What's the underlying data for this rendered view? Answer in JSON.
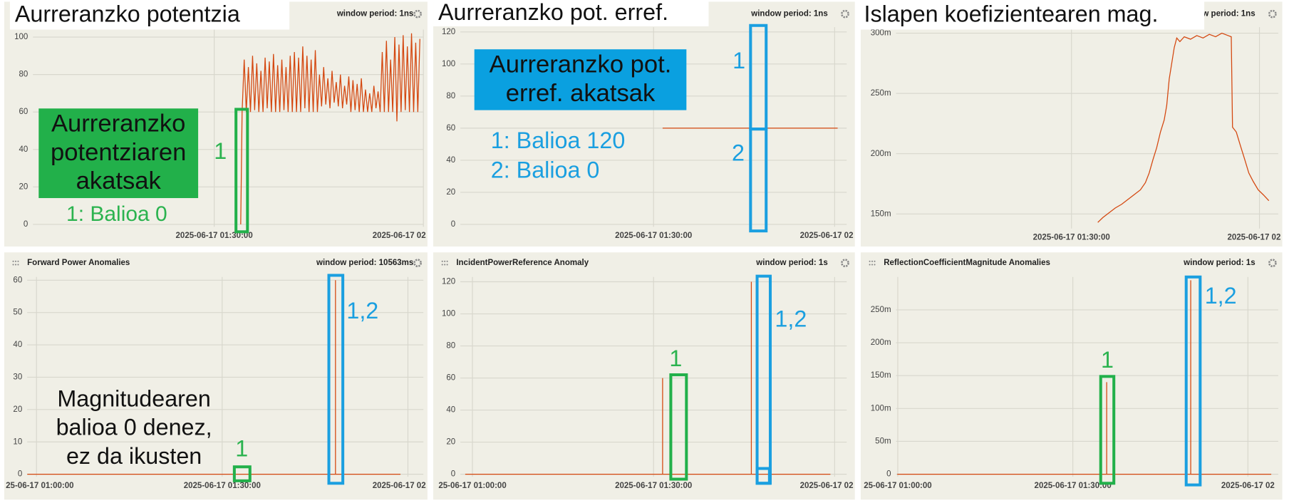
{
  "chart_data": [
    {
      "type": "line",
      "label": "Aurreranzko potentzia",
      "window_period": "window period: 1ns",
      "x": [
        93.8,
        94.0,
        94.3,
        94.6,
        94.9,
        95.2,
        95.5,
        95.8,
        96.1,
        96.4,
        96.7,
        97.0,
        97.3,
        97.6,
        97.9,
        98.2,
        98.5,
        98.8,
        99.1,
        99.4,
        99.7,
        100.0,
        100.3,
        100.6,
        100.9,
        101.2,
        101.5,
        101.8,
        102.1,
        102.4,
        102.7,
        103.0,
        103.3,
        103.6,
        103.9,
        104.2,
        104.5,
        104.8,
        105.1,
        105.4,
        105.7,
        106.0,
        106.3,
        106.6,
        106.9,
        107.2,
        107.5,
        107.8,
        108.1,
        108.4,
        108.7,
        109.0,
        109.3,
        109.6,
        109.9,
        110.2,
        110.5,
        110.8,
        111.1,
        111.4,
        111.7,
        112.0,
        112.3,
        112.6,
        112.9,
        113.2,
        113.5,
        113.8,
        114.1,
        114.4,
        114.7,
        115.0,
        115.3,
        115.6,
        115.9,
        116.2,
        116.5,
        116.8,
        117.1,
        117.4,
        117.7,
        118.0,
        118.3,
        118.6,
        118.9,
        119.2,
        119.5
      ],
      "series": [
        {
          "color": "#d4470f",
          "values": [
            0,
            60,
            88,
            60,
            84,
            60,
            90,
            61,
            86,
            60,
            82,
            60,
            89,
            62,
            87,
            60,
            91,
            60,
            85,
            60,
            88,
            61,
            84,
            60,
            90,
            60,
            92,
            60,
            89,
            60,
            95,
            62,
            90,
            60,
            88,
            60,
            93,
            60,
            80,
            63,
            84,
            64,
            78,
            62,
            82,
            65,
            76,
            63,
            80,
            62,
            74,
            64,
            79,
            60,
            77,
            61,
            75,
            60,
            78,
            60,
            72,
            60,
            70,
            60,
            74,
            62,
            71,
            60,
            92,
            60,
            98,
            60,
            88,
            60,
            100,
            55,
            96,
            60,
            101,
            61,
            95,
            60,
            102,
            60,
            97,
            60,
            99
          ]
        }
      ],
      "xlim": [
        64,
        120
      ],
      "xticks": [
        {
          "value": 90,
          "label": "2025-06-17 01:30:00"
        },
        {
          "value": 120,
          "label": "2025-06-17 02"
        }
      ],
      "ylim": [
        0,
        104
      ],
      "yticks": [
        0,
        20,
        40,
        60,
        80,
        100
      ],
      "grid": true,
      "callout": [
        "Aurreranzko",
        "potentziaren",
        "akatsak"
      ],
      "notes": [
        "1: Balioa 0"
      ],
      "markers": [
        "1"
      ]
    },
    {
      "type": "line",
      "label": "Aurreranzko pot. erref.",
      "window_period": "window period: 1ns",
      "x": [
        91.5,
        106.2,
        106.2,
        106.2,
        106.2,
        120.5
      ],
      "series": [
        {
          "color": "#d4470f",
          "values": [
            60,
            60,
            120,
            0,
            60,
            60
          ]
        }
      ],
      "xlim": [
        58,
        122
      ],
      "xticks": [
        {
          "value": 90,
          "label": "2025-06-17 01:30:00"
        },
        {
          "value": 120,
          "label": "2025-06-17 02"
        }
      ],
      "ylim": [
        0,
        123
      ],
      "yticks": [
        0,
        20,
        40,
        60,
        80,
        100,
        120
      ],
      "grid": true,
      "callout": [
        "Aurreranzko pot.",
        "erref. akatsak"
      ],
      "notes": [
        "1: Balioa 120",
        "2: Balioa 0"
      ],
      "markers": [
        "1",
        "2"
      ]
    },
    {
      "type": "line",
      "label": "Islapen koefizientearen mag.",
      "window_period": "window period: 1ns",
      "x": [
        94.2,
        95,
        96,
        97,
        98,
        99,
        100,
        101,
        101.8,
        102.4,
        103,
        103.6,
        104.2,
        104.8,
        105.2,
        105.6,
        106.0,
        106.4,
        106.8,
        107.3,
        108,
        109,
        110,
        111,
        112,
        113,
        114,
        115,
        115.5,
        115.7,
        116.3,
        117,
        117.6,
        118.3,
        119,
        119.8,
        120.6,
        121.5
      ],
      "series": [
        {
          "color": "#d4470f",
          "values": [
            0.143,
            0.147,
            0.151,
            0.155,
            0.158,
            0.162,
            0.166,
            0.17,
            0.176,
            0.184,
            0.195,
            0.205,
            0.218,
            0.228,
            0.24,
            0.262,
            0.275,
            0.288,
            0.296,
            0.293,
            0.297,
            0.295,
            0.298,
            0.296,
            0.299,
            0.297,
            0.3,
            0.298,
            0.297,
            0.222,
            0.218,
            0.206,
            0.196,
            0.184,
            0.177,
            0.17,
            0.166,
            0.161
          ]
        }
      ],
      "xlim": [
        62,
        123
      ],
      "xticks": [
        {
          "value": 90,
          "label": "2025-06-17 01:30:00"
        },
        {
          "value": 120,
          "label": "2025-06-17 02"
        }
      ],
      "ylim": [
        0.14,
        0.305
      ],
      "yticks": [
        {
          "value": 0.15,
          "label": "150m"
        },
        {
          "value": 0.2,
          "label": "200m"
        },
        {
          "value": 0.25,
          "label": "250m"
        },
        {
          "value": 0.3,
          "label": "300m"
        }
      ],
      "grid": true
    },
    {
      "type": "line",
      "title": "Forward Power Anomalies",
      "window_period": "window period: 10563ms",
      "x": [
        58.5,
        93.2,
        108.3,
        108.3,
        108.3,
        118.8
      ],
      "series": [
        {
          "color": "#d4470f",
          "values": [
            0,
            0,
            0,
            60,
            0,
            0
          ]
        }
      ],
      "xlim": [
        58.5,
        122.5
      ],
      "xticks": [
        {
          "value": 60,
          "label": "25-06-17 01:00:00"
        },
        {
          "value": 90,
          "label": "2025-06-17 01:30:00"
        },
        {
          "value": 120,
          "label": "2025-06-17 02"
        }
      ],
      "ylim": [
        0,
        61
      ],
      "yticks": [
        0,
        10,
        20,
        30,
        40,
        50,
        60
      ],
      "grid": true,
      "notes": [
        "Magnitudearen",
        "balioa 0 denez,",
        "ez da ikusten"
      ],
      "markers": [
        "1",
        "1,2"
      ]
    },
    {
      "type": "line",
      "title": "IncidentPowerReference Anomaly",
      "window_period": "window period: 1s",
      "x": [
        58.8,
        91.5,
        91.5,
        91.5,
        106.2,
        106.2,
        106.2,
        119.3
      ],
      "series": [
        {
          "color": "#d4470f",
          "values": [
            0,
            0,
            60,
            0,
            0,
            120,
            0,
            0
          ]
        }
      ],
      "xlim": [
        58,
        122
      ],
      "xticks": [
        {
          "value": 60,
          "label": "25-06-17 01:00:00"
        },
        {
          "value": 90,
          "label": "2025-06-17 01:30:00"
        },
        {
          "value": 120,
          "label": "2025-06-17 02"
        }
      ],
      "ylim": [
        0,
        123
      ],
      "yticks": [
        0,
        20,
        40,
        60,
        80,
        100,
        120
      ],
      "grid": true,
      "markers": [
        "1",
        "1,2"
      ]
    },
    {
      "type": "line",
      "title": "ReflectionCoefficientMagnitude Anomalies",
      "window_period": "window period: 1s",
      "x": [
        59.9,
        95.8,
        95.8,
        95.8,
        110.2,
        110.2,
        110.2,
        124.0
      ],
      "series": [
        {
          "color": "#d4470f",
          "values": [
            0,
            0,
            0.14,
            0,
            0,
            0.295,
            0,
            0
          ]
        }
      ],
      "xlim": [
        59.7,
        125.2
      ],
      "xticks": [
        {
          "value": 60,
          "label": "25-06-17 01:00:00"
        },
        {
          "value": 90,
          "label": "2025-06-17 01:30:00"
        },
        {
          "value": 120,
          "label": "2025-06-17 02"
        }
      ],
      "ylim": [
        0,
        0.3
      ],
      "yticks": [
        0,
        {
          "value": 0.05,
          "label": "50m"
        },
        {
          "value": 0.1,
          "label": "100m"
        },
        {
          "value": 0.15,
          "label": "150m"
        },
        {
          "value": 0.2,
          "label": "200m"
        },
        {
          "value": 0.25,
          "label": "250m"
        }
      ],
      "grid": true,
      "markers": [
        "1",
        "1,2"
      ]
    }
  ]
}
